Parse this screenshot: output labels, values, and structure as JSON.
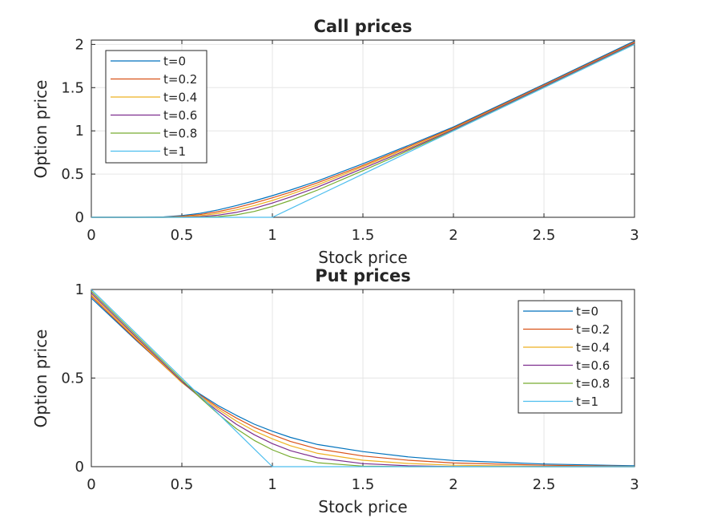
{
  "chart_data": [
    {
      "type": "line",
      "title": "Call prices",
      "xlabel": "Stock price",
      "ylabel": "Option price",
      "xlim": [
        0,
        3
      ],
      "ylim": [
        0,
        2.05
      ],
      "xticks": [
        "0",
        "0.5",
        "1",
        "1.5",
        "2",
        "2.5",
        "3"
      ],
      "yticks": [
        "0",
        "0.5",
        "1",
        "1.5",
        "2"
      ],
      "grid": true,
      "legend_position": "top-left",
      "x": [
        0,
        0.25,
        0.4,
        0.5,
        0.6,
        0.7,
        0.8,
        0.9,
        1.0,
        1.1,
        1.25,
        1.5,
        1.75,
        2.0,
        2.5,
        3.0
      ],
      "series": [
        {
          "name": "t=0",
          "color": "#0072BD",
          "values": [
            0,
            0,
            0.005,
            0.02,
            0.045,
            0.085,
            0.135,
            0.19,
            0.25,
            0.315,
            0.42,
            0.62,
            0.83,
            1.045,
            1.54,
            2.04
          ]
        },
        {
          "name": "t=0.2",
          "color": "#D95319",
          "values": [
            0,
            0,
            0.002,
            0.012,
            0.032,
            0.065,
            0.11,
            0.165,
            0.225,
            0.29,
            0.4,
            0.6,
            0.815,
            1.035,
            1.53,
            2.03
          ]
        },
        {
          "name": "t=0.4",
          "color": "#EDB120",
          "values": [
            0,
            0,
            0,
            0.005,
            0.018,
            0.045,
            0.085,
            0.135,
            0.195,
            0.265,
            0.375,
            0.585,
            0.8,
            1.025,
            1.52,
            2.02
          ]
        },
        {
          "name": "t=0.6",
          "color": "#7E2F8E",
          "values": [
            0,
            0,
            0,
            0.001,
            0.007,
            0.025,
            0.057,
            0.105,
            0.165,
            0.235,
            0.35,
            0.565,
            0.785,
            1.015,
            1.515,
            2.015
          ]
        },
        {
          "name": "t=0.8",
          "color": "#77AC30",
          "values": [
            0,
            0,
            0,
            0,
            0.001,
            0.008,
            0.028,
            0.068,
            0.125,
            0.195,
            0.315,
            0.54,
            0.77,
            1.005,
            1.505,
            2.005
          ]
        },
        {
          "name": "t=1",
          "color": "#4DBEEE",
          "values": [
            0,
            0,
            0,
            0,
            0,
            0,
            0,
            0,
            0,
            0.1,
            0.25,
            0.5,
            0.75,
            1.0,
            1.5,
            2.0
          ]
        }
      ]
    },
    {
      "type": "line",
      "title": "Put prices",
      "xlabel": "Stock price",
      "ylabel": "Option price",
      "xlim": [
        0,
        3
      ],
      "ylim": [
        0,
        1
      ],
      "xticks": [
        "0",
        "0.5",
        "1",
        "1.5",
        "2",
        "2.5",
        "3"
      ],
      "yticks": [
        "0",
        "0.5",
        "1"
      ],
      "grid": true,
      "legend_position": "top-right",
      "x": [
        0,
        0.25,
        0.5,
        0.55,
        0.6,
        0.7,
        0.8,
        0.9,
        1.0,
        1.1,
        1.25,
        1.5,
        1.75,
        2.0,
        2.5,
        3.0
      ],
      "series": [
        {
          "name": "t=0",
          "color": "#0072BD",
          "values": [
            0.951,
            0.71,
            0.48,
            0.445,
            0.41,
            0.345,
            0.29,
            0.24,
            0.2,
            0.165,
            0.125,
            0.085,
            0.055,
            0.035,
            0.015,
            0.005
          ]
        },
        {
          "name": "t=0.2",
          "color": "#D95319",
          "values": [
            0.961,
            0.714,
            0.475,
            0.44,
            0.405,
            0.335,
            0.275,
            0.222,
            0.18,
            0.142,
            0.1,
            0.06,
            0.036,
            0.021,
            0.008,
            0.002
          ]
        },
        {
          "name": "t=0.4",
          "color": "#EDB120",
          "values": [
            0.97,
            0.722,
            0.474,
            0.435,
            0.398,
            0.325,
            0.258,
            0.202,
            0.157,
            0.118,
            0.075,
            0.036,
            0.018,
            0.008,
            0.002,
            0
          ]
        },
        {
          "name": "t=0.6",
          "color": "#7E2F8E",
          "values": [
            0.98,
            0.73,
            0.481,
            0.435,
            0.392,
            0.313,
            0.24,
            0.18,
            0.13,
            0.09,
            0.05,
            0.017,
            0.005,
            0.001,
            0,
            0
          ]
        },
        {
          "name": "t=0.8",
          "color": "#77AC30",
          "values": [
            0.99,
            0.74,
            0.49,
            0.44,
            0.39,
            0.298,
            0.215,
            0.148,
            0.095,
            0.055,
            0.022,
            0.003,
            0,
            0,
            0,
            0
          ]
        },
        {
          "name": "t=1",
          "color": "#4DBEEE",
          "values": [
            1.0,
            0.75,
            0.5,
            0.45,
            0.4,
            0.3,
            0.2,
            0.1,
            0,
            0,
            0,
            0,
            0,
            0,
            0,
            0
          ]
        }
      ]
    }
  ]
}
